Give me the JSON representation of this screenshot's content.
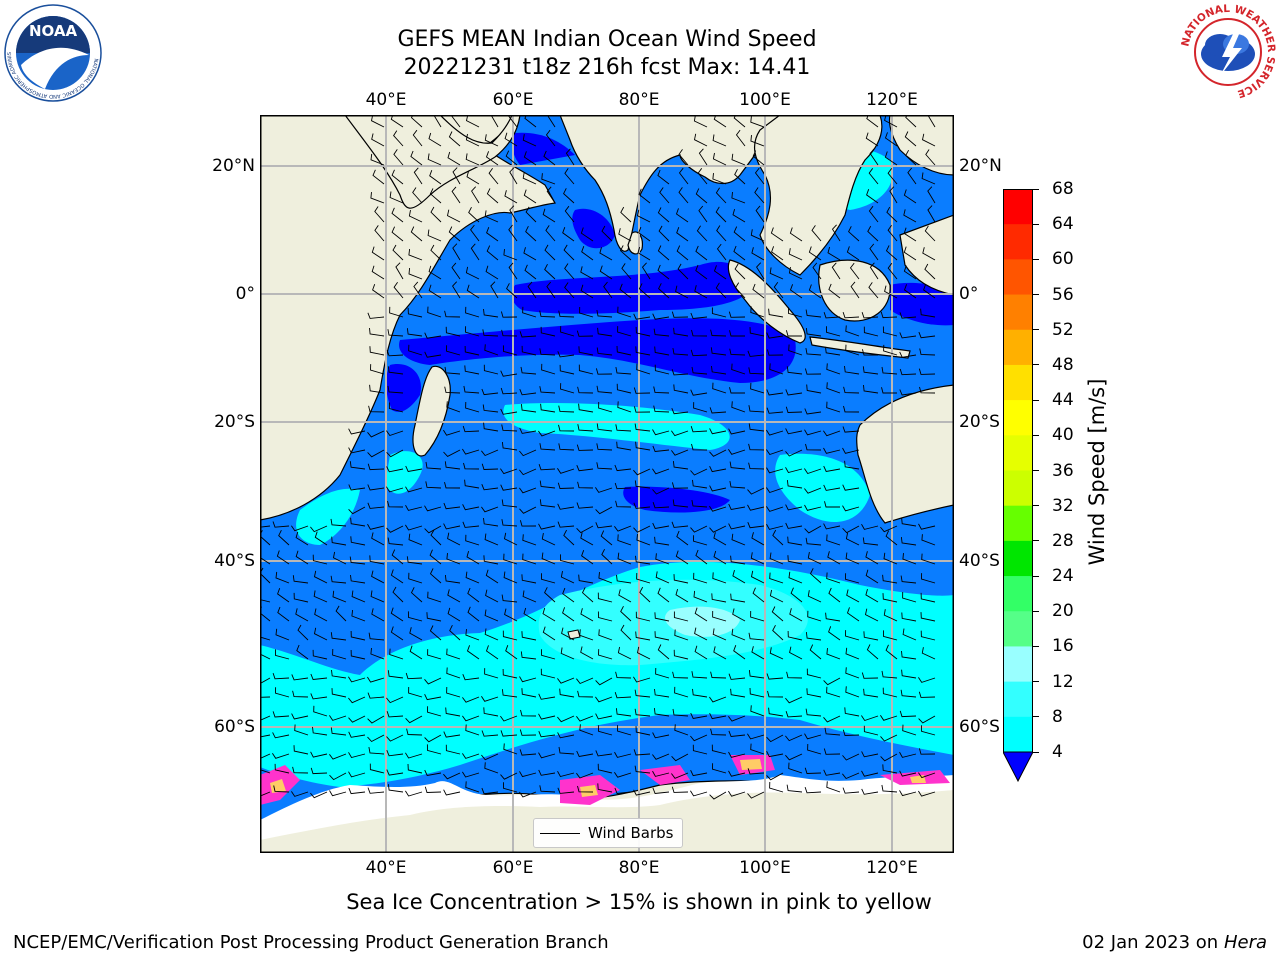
{
  "header": {
    "title_line1": "GEFS MEAN Indian Ocean Wind Speed",
    "title_line2": "20221231 t18z 216h fcst   Max: 14.41"
  },
  "logos": {
    "noaa_text": "NOAA",
    "noaa_ring": "NATIONAL OCEANIC AND ATMOSPHERIC ADMINISTRATION · U.S. DEPARTMENT OF COMMERCE",
    "nws_ring": "NATIONAL WEATHER SERVICE"
  },
  "map": {
    "lon_labels": [
      "40°E",
      "60°E",
      "80°E",
      "100°E",
      "120°E"
    ],
    "lat_labels": [
      "20°N",
      "0°",
      "20°S",
      "40°S",
      "60°S"
    ],
    "legend_label": "Wind Barbs",
    "colors": {
      "land": "#efefdd",
      "ice": "#ffffff",
      "wind_4_8": "#0a7dff",
      "wind_8_12": "#00ffff",
      "wind_12_16": "#33ffff",
      "wind_16_20": "#99ffff",
      "wind_max": "#0000ff",
      "ice_pink": "#ff33cc",
      "ice_yellow": "#ffcc66",
      "grid": "#b8b8b8"
    }
  },
  "colorbar": {
    "label": "Wind Speed [m/s]",
    "ticks": [
      "68",
      "64",
      "60",
      "56",
      "52",
      "48",
      "44",
      "40",
      "36",
      "32",
      "28",
      "24",
      "20",
      "16",
      "12",
      "8",
      "4"
    ],
    "bins": [
      {
        "range": "64-68",
        "color": "#ff0000"
      },
      {
        "range": "60-64",
        "color": "#ff2a00"
      },
      {
        "range": "56-60",
        "color": "#ff5500"
      },
      {
        "range": "52-56",
        "color": "#ff8000"
      },
      {
        "range": "48-52",
        "color": "#ffb000"
      },
      {
        "range": "44-48",
        "color": "#ffe000"
      },
      {
        "range": "40-44",
        "color": "#ffff00"
      },
      {
        "range": "36-40",
        "color": "#e6ff00"
      },
      {
        "range": "32-36",
        "color": "#ccff00"
      },
      {
        "range": "28-32",
        "color": "#66ff00"
      },
      {
        "range": "24-28",
        "color": "#00e600"
      },
      {
        "range": "20-24",
        "color": "#33ff66"
      },
      {
        "range": "16-20",
        "color": "#55ff88"
      },
      {
        "range": "12-16",
        "color": "#99ffff"
      },
      {
        "range": "8-12",
        "color": "#33ffff"
      },
      {
        "range": "4-8",
        "color": "#00ffff"
      },
      {
        "range": "<4",
        "color": "#0a7dff"
      }
    ],
    "extend_color": "#0000ff"
  },
  "footer": {
    "sea_ice_note": "Sea Ice Concentration > 15% is shown in pink to yellow",
    "credit": "NCEP/EMC/Verification Post Processing Product Generation Branch",
    "date": "02 Jan 2023 on",
    "machine": "Hera"
  }
}
